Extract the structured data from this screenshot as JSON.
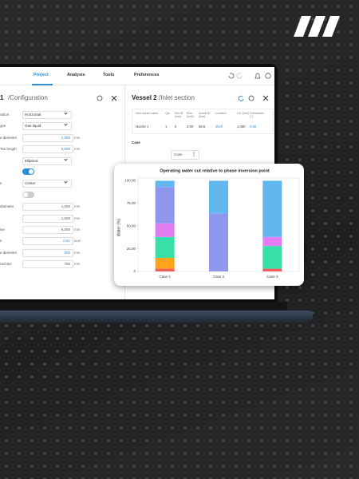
{
  "app": {
    "nav": [
      "Project",
      "Analysis",
      "Tools",
      "Preferences"
    ],
    "active_tab": 0,
    "left_panel": {
      "number": "1",
      "title": "/Configuration",
      "rows": [
        {
          "label": "ration",
          "select": "Horizontal"
        },
        {
          "label": "ype",
          "select": "Gas-liquid"
        },
        {
          "label": "e diameter",
          "input": "2,000",
          "unit": "mm",
          "highlight": true
        },
        {
          "label": "Tan length",
          "input": "6,000",
          "unit": "mm",
          "highlight": true
        },
        {
          "select": "Elliptical"
        },
        {
          "toggle": true
        },
        {
          "label": "e",
          "select": "Center"
        },
        {
          "toggle": false
        },
        {
          "label": "diameter",
          "input": "1,000",
          "unit": "mm"
        },
        {
          "input": "1,500",
          "unit": "mm"
        },
        {
          "label": "ive",
          "input": "6,000",
          "unit": "mm"
        },
        {
          "label": "e",
          "input": "0.61",
          "unit": "sum",
          "highlight": true
        },
        {
          "label": "e diameter",
          "input": "500",
          "unit": "mm",
          "highlight": true
        },
        {
          "label": "rachins",
          "input": "750",
          "unit": "mm"
        }
      ]
    },
    "right_panel": {
      "vessel": "Vessel 2",
      "title": "/Inlet section",
      "table": {
        "headers": [
          "Inlet nozzle name",
          "Qty",
          "Min ID (mm)",
          "Size (inch)",
          "Actual ID (mm)",
          "Location",
          "C/L (mm)",
          "Orientation (°)"
        ],
        "rows": [
          [
            "Nozzle 1",
            "1",
            "0",
            "2.00",
            "56.8",
            "shell",
            "1,060",
            "0.00"
          ]
        ]
      },
      "case_label": "Case",
      "case_button": "Case"
    }
  },
  "chart_data": {
    "type": "stacked-bar",
    "title": "Operating water cut relative to phase inversion point",
    "y_label": "Water (%)",
    "categories": [
      "Case 1",
      "Case 2",
      "Case 3"
    ],
    "series": [
      {
        "color": "#f25c5c",
        "values": [
          3,
          0,
          3
        ]
      },
      {
        "color": "#ffa41b",
        "values": [
          12,
          0,
          0
        ]
      },
      {
        "color": "#36e0a8",
        "values": [
          23,
          0,
          25
        ]
      },
      {
        "color": "#e27cf2",
        "values": [
          15,
          0,
          10
        ]
      },
      {
        "color": "#8f96ee",
        "values": [
          40,
          64,
          0
        ]
      },
      {
        "color": "#63b7ef",
        "values": [
          7,
          36,
          62
        ]
      }
    ],
    "ylim": [
      0,
      103
    ],
    "yticks": [
      0,
      {
        "value": 25,
        "label": "25.00"
      },
      {
        "value": 50,
        "label": "50.00"
      },
      {
        "value": 75,
        "label": "75.00"
      },
      {
        "value": 100,
        "label": "100.00"
      }
    ],
    "grid": false
  }
}
